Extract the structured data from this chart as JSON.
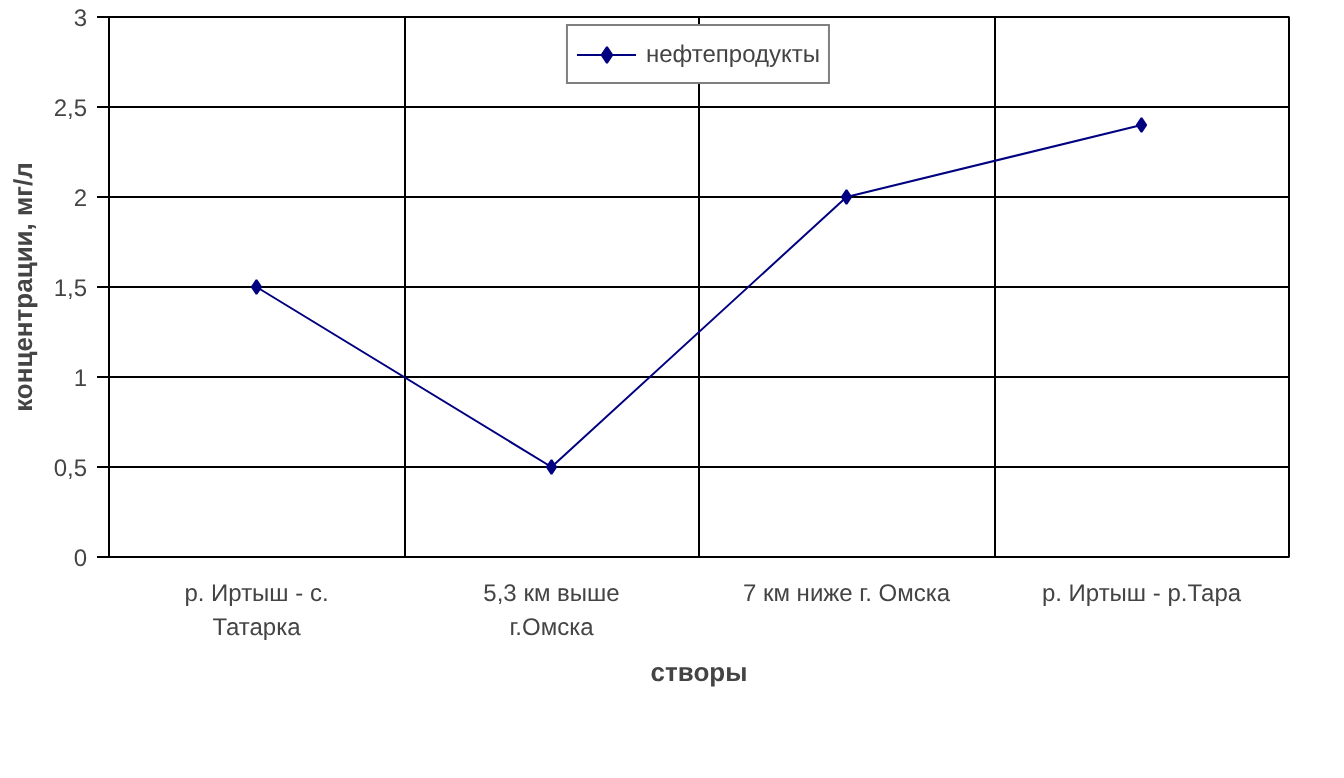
{
  "chart_data": {
    "type": "line",
    "xlabel": "створы",
    "ylabel": "концентрации, мг/л",
    "categories": [
      "р. Иртыш - с. Татарка",
      "5,3 км выше г.Омска",
      "7 км ниже г. Омска",
      "р. Иртыш - р.Тара"
    ],
    "series": [
      {
        "name": "нефтепродукты",
        "color": "#000080",
        "values": [
          1.5,
          0.5,
          2.0,
          2.4
        ]
      }
    ],
    "ylim": [
      0,
      3
    ],
    "yticks": [
      0,
      {
        "value": 0.5,
        "label": "0,5"
      },
      1,
      {
        "value": 1.5,
        "label": "1,5"
      },
      2,
      {
        "value": 2.5,
        "label": "2,5"
      },
      3
    ],
    "grid": true,
    "legend": "top",
    "marker": "diamond",
    "line_style": "solid"
  }
}
